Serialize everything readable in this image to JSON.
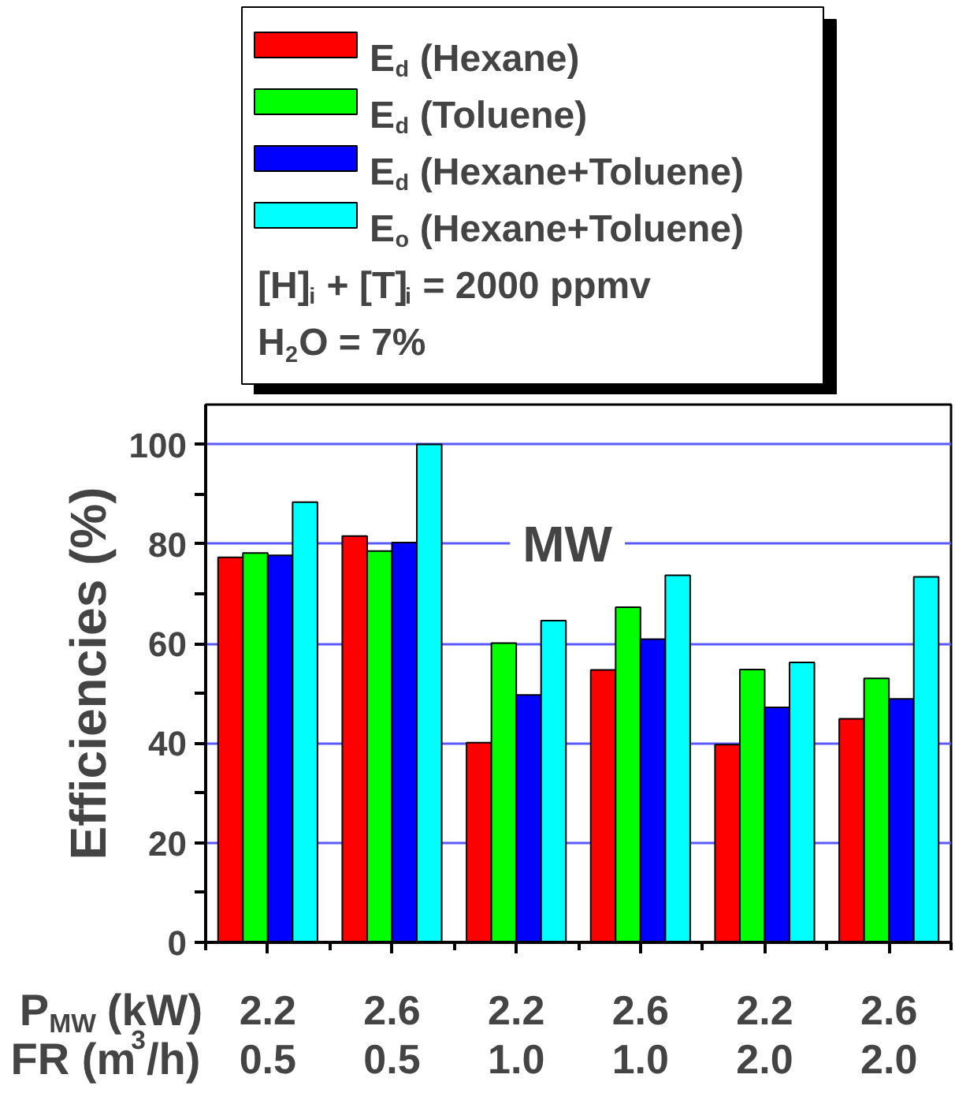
{
  "chart_data": {
    "type": "bar",
    "categories": [
      "2.2\n0.5",
      "2.6\n0.5",
      "2.2\n1.0",
      "2.6\n1.0",
      "2.2\n2.0",
      "2.6\n2.0"
    ],
    "series": [
      {
        "name": "E$_{d}$ (Hexane)",
        "color": "#ff0000",
        "values": [
          77.3,
          81.6,
          40.1,
          54.7,
          39.7,
          44.9
        ]
      },
      {
        "name": "E$_{d}$ (Toluene)",
        "color": "#00ff00",
        "values": [
          78.2,
          78.6,
          60.1,
          67.3,
          54.8,
          53.0
        ]
      },
      {
        "name": "E$_{d}$ (Hexane+Toluene)",
        "color": "#0000ff",
        "values": [
          77.7,
          80.3,
          49.7,
          60.9,
          47.2,
          48.9
        ]
      },
      {
        "name": "E$_{o}$ (Hexane+Toluene)",
        "color": "#00ffff",
        "values": [
          88.4,
          100.0,
          64.6,
          73.7,
          56.2,
          73.4
        ]
      }
    ],
    "xlabel": "P$_{MW}$ (kW)\nFR (m$^{3}$/h)",
    "ylabel": "Efficiencies (%)",
    "ylim": [
      0,
      108
    ],
    "yticks": [
      0,
      {
        "value": 10,
        "label": null
      },
      20,
      {
        "value": 30,
        "label": null
      },
      40,
      {
        "value": 50,
        "label": null
      },
      60,
      {
        "value": 70,
        "label": null
      },
      80,
      {
        "value": 90,
        "label": null
      },
      100
    ],
    "grid": "y",
    "legend": "top",
    "annotations": [
      "[H]$_{i}$ + [T]$_{i}$ = 2000 ppmv",
      "H$_{2}$O = 7%",
      "MW"
    ]
  }
}
